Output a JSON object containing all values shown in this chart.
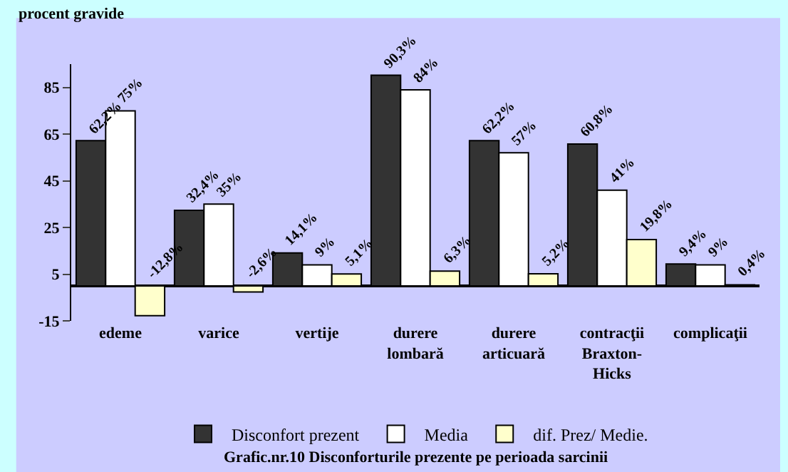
{
  "chart_data": {
    "type": "bar",
    "title": "Grafic.nr.10 Disconforturile prezente pe perioada sarcinii",
    "ylabel": "procent gravide",
    "categories": [
      "edeme",
      "varice",
      "vertije",
      "durere lombară",
      "durere articuară",
      "contracţii Braxton-Hicks",
      "complicaţii"
    ],
    "series": [
      {
        "name": "Disconfort prezent",
        "color": "#333333",
        "values": [
          62.2,
          32.4,
          14.1,
          90.3,
          62.2,
          60.8,
          9.4
        ],
        "value_labels": [
          "62,2%",
          "32,4%",
          "14,1%",
          "90,3%",
          "62,2%",
          "60,8%",
          "9,4%"
        ]
      },
      {
        "name": "Media",
        "color": "#ffffff",
        "values": [
          75,
          35,
          9,
          84,
          57,
          41,
          9
        ],
        "value_labels": [
          "75%",
          "35%",
          "9%",
          "84%",
          "57%",
          "41%",
          "9%"
        ]
      },
      {
        "name": "dif. Prez/ Medie.",
        "color": "#ffffcc",
        "values": [
          -12.8,
          -2.6,
          5.1,
          6.3,
          5.2,
          19.8,
          0.4
        ],
        "value_labels": [
          "-12,8%",
          "-2,6%",
          "5,1%",
          "6,3%",
          "5,2%",
          "19,8%",
          "0,4%"
        ]
      }
    ],
    "ylim": [
      -15,
      95
    ],
    "yticks": [
      -15,
      5,
      25,
      45,
      65,
      85
    ],
    "grid": false,
    "legend": "bottom"
  }
}
